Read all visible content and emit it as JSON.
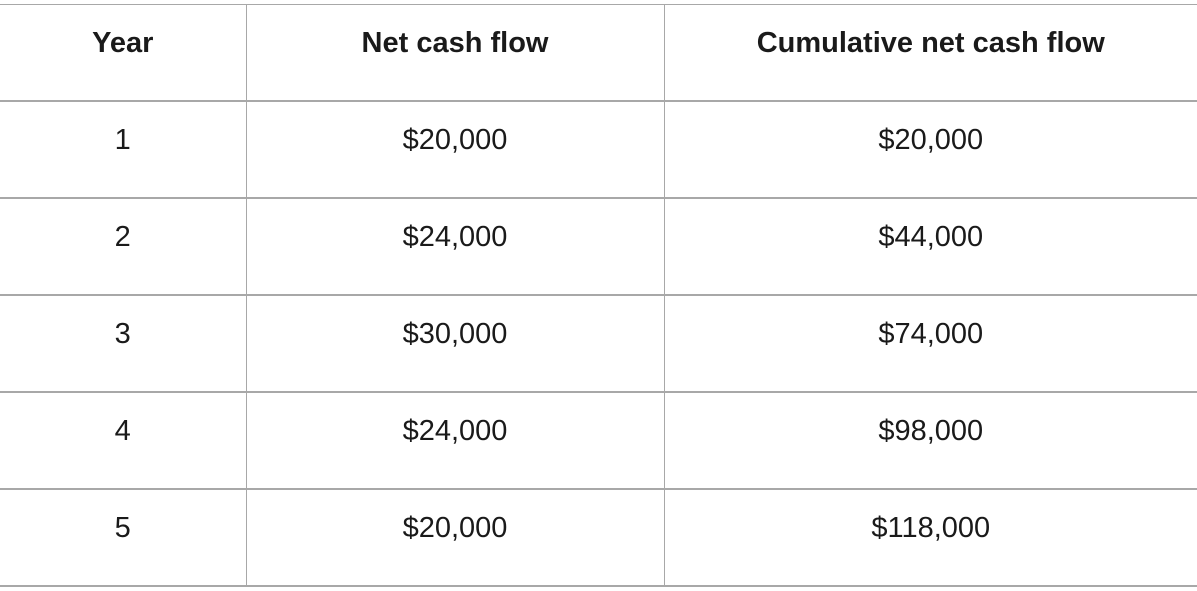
{
  "table": {
    "headers": [
      "Year",
      "Net cash flow",
      "Cumulative net cash flow"
    ],
    "rows": [
      [
        "1",
        "$20,000",
        "$20,000"
      ],
      [
        "2",
        "$24,000",
        "$44,000"
      ],
      [
        "3",
        "$30,000",
        "$74,000"
      ],
      [
        "4",
        "$24,000",
        "$98,000"
      ],
      [
        "5",
        "$20,000",
        "$118,000"
      ]
    ]
  }
}
